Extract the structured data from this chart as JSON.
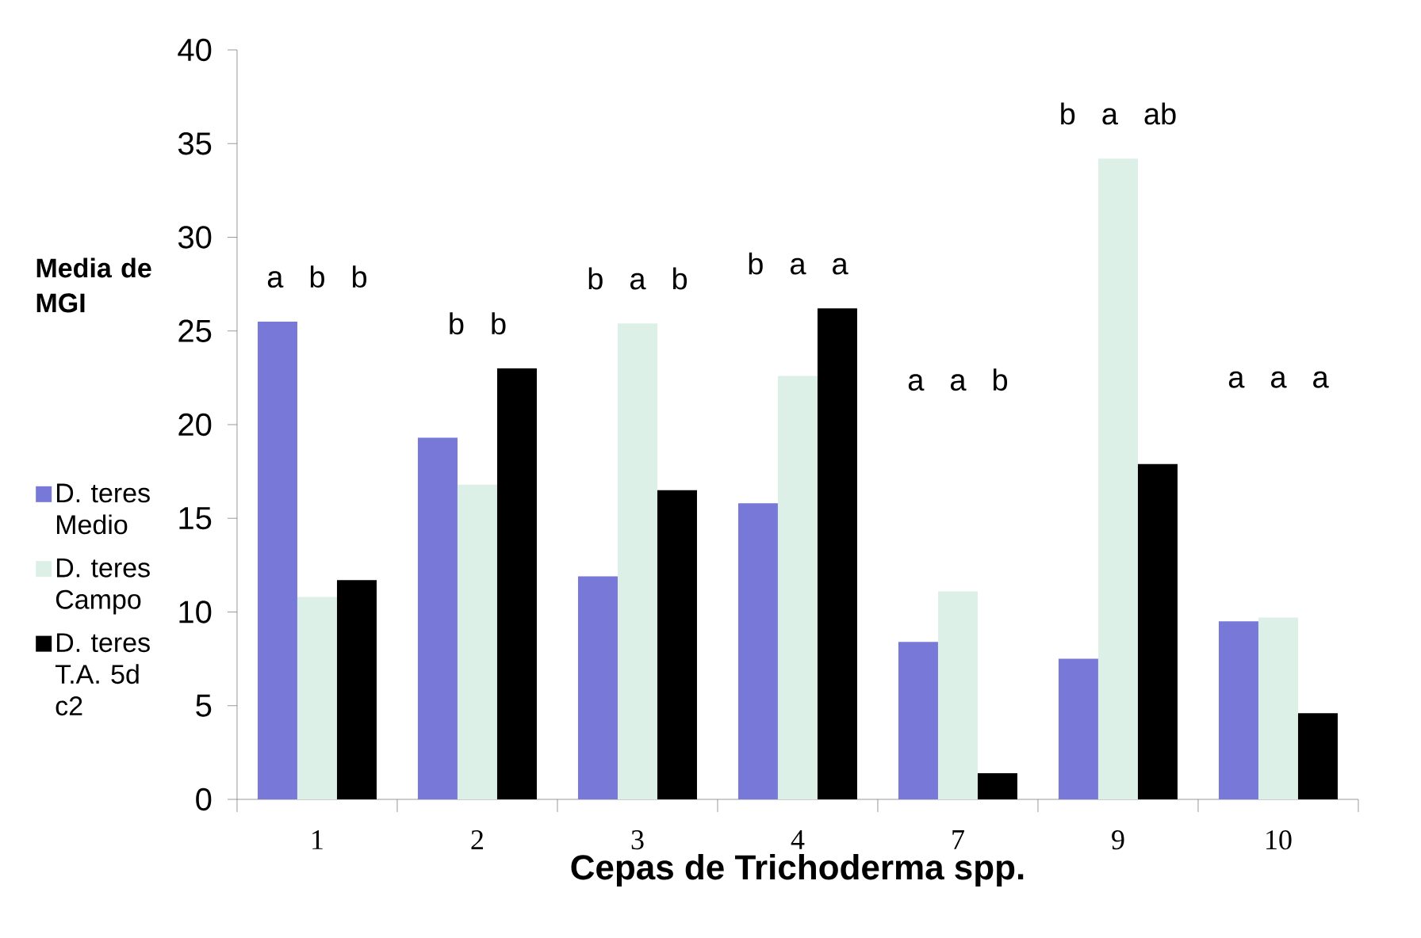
{
  "chart_data": {
    "type": "bar",
    "xlabel": "Cepas de Trichoderma  spp.",
    "ylabel": "Media de MGI",
    "categories": [
      "1",
      "2",
      "3",
      "4",
      "7",
      "9",
      "10"
    ],
    "series": [
      {
        "name": "D. teres Medio",
        "color": "#7878d8",
        "values": [
          25.5,
          19.3,
          11.9,
          15.8,
          8.4,
          7.5,
          9.5
        ]
      },
      {
        "name": "D. teres Campo",
        "color": "#dcf0e8",
        "values": [
          10.8,
          16.8,
          25.4,
          22.6,
          11.1,
          34.2,
          9.7
        ]
      },
      {
        "name": "D. teres T.A. 5d c2",
        "color": "#000000",
        "values": [
          11.7,
          23.0,
          16.5,
          26.2,
          1.4,
          17.9,
          4.6
        ]
      }
    ],
    "ylim": [
      0,
      40
    ],
    "yticks": [
      0,
      5,
      10,
      15,
      20,
      25,
      30,
      35,
      40
    ],
    "grid": false,
    "legend": "left",
    "annotations": [
      "a b b",
      "b b",
      "b a b",
      "b a a",
      "a a b",
      "b a ab",
      "a a a"
    ]
  }
}
